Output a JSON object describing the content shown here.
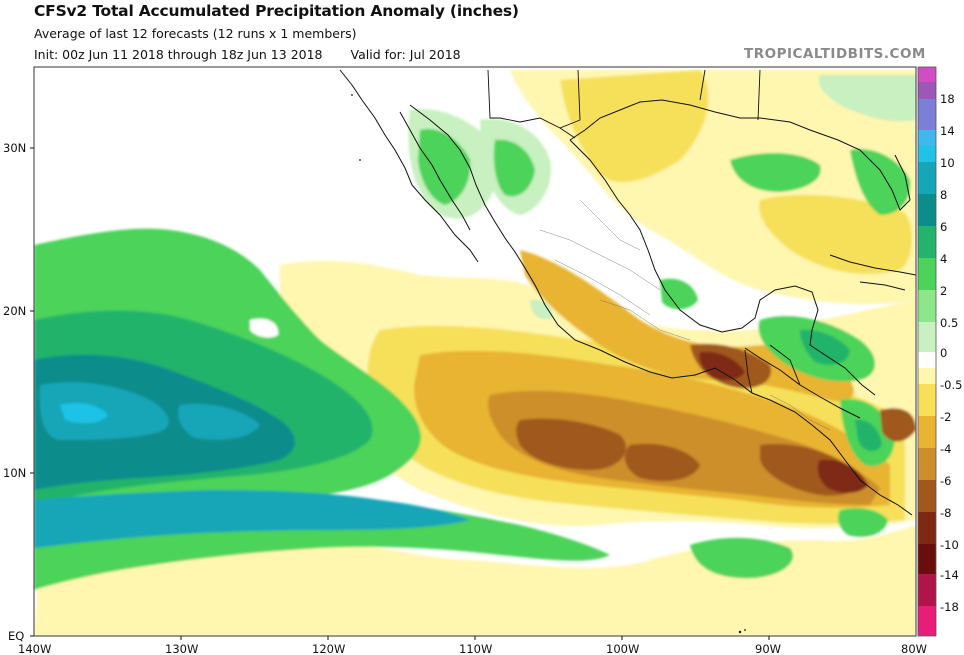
{
  "header": {
    "title": "CFSv2 Total Accumulated Precipitation Anomaly (inches)",
    "subtitle": "Average of last 12 forecasts (12 runs x 1 members)",
    "init": "Init: 00z Jun 11 2018 through 18z Jun 13 2018",
    "valid": "Valid for: Jul 2018",
    "brand": "TROPICALTIDBITS.COM"
  },
  "map": {
    "lon_labels": [
      "140W",
      "130W",
      "120W",
      "110W",
      "100W",
      "90W",
      "80W"
    ],
    "lat_labels": [
      "30N",
      "20N",
      "10N",
      "EQ"
    ],
    "lon_values": [
      -140,
      -130,
      -120,
      -110,
      -100,
      -90,
      -80
    ],
    "lat_values": [
      30,
      20,
      10,
      0
    ]
  },
  "colorbar": {
    "levels": [
      "18",
      "14",
      "10",
      "8",
      "6",
      "4",
      "2",
      "0.5",
      "0",
      "-0.5",
      "-2",
      "-4",
      "-6",
      "-8",
      "-10",
      "-14",
      "-18"
    ],
    "colors": [
      "#9b59b6",
      "#7b7fd6",
      "#1ec3e6",
      "#15a6b8",
      "#0d8c8c",
      "#23b36b",
      "#4cd35a",
      "#c8f0c0",
      "#ffffff",
      "#fff6b0",
      "#f6e05a",
      "#e8b431",
      "#cc8f2b",
      "#a0581d",
      "#7e2a13",
      "#6b0d0d",
      "#d6246e"
    ]
  }
}
